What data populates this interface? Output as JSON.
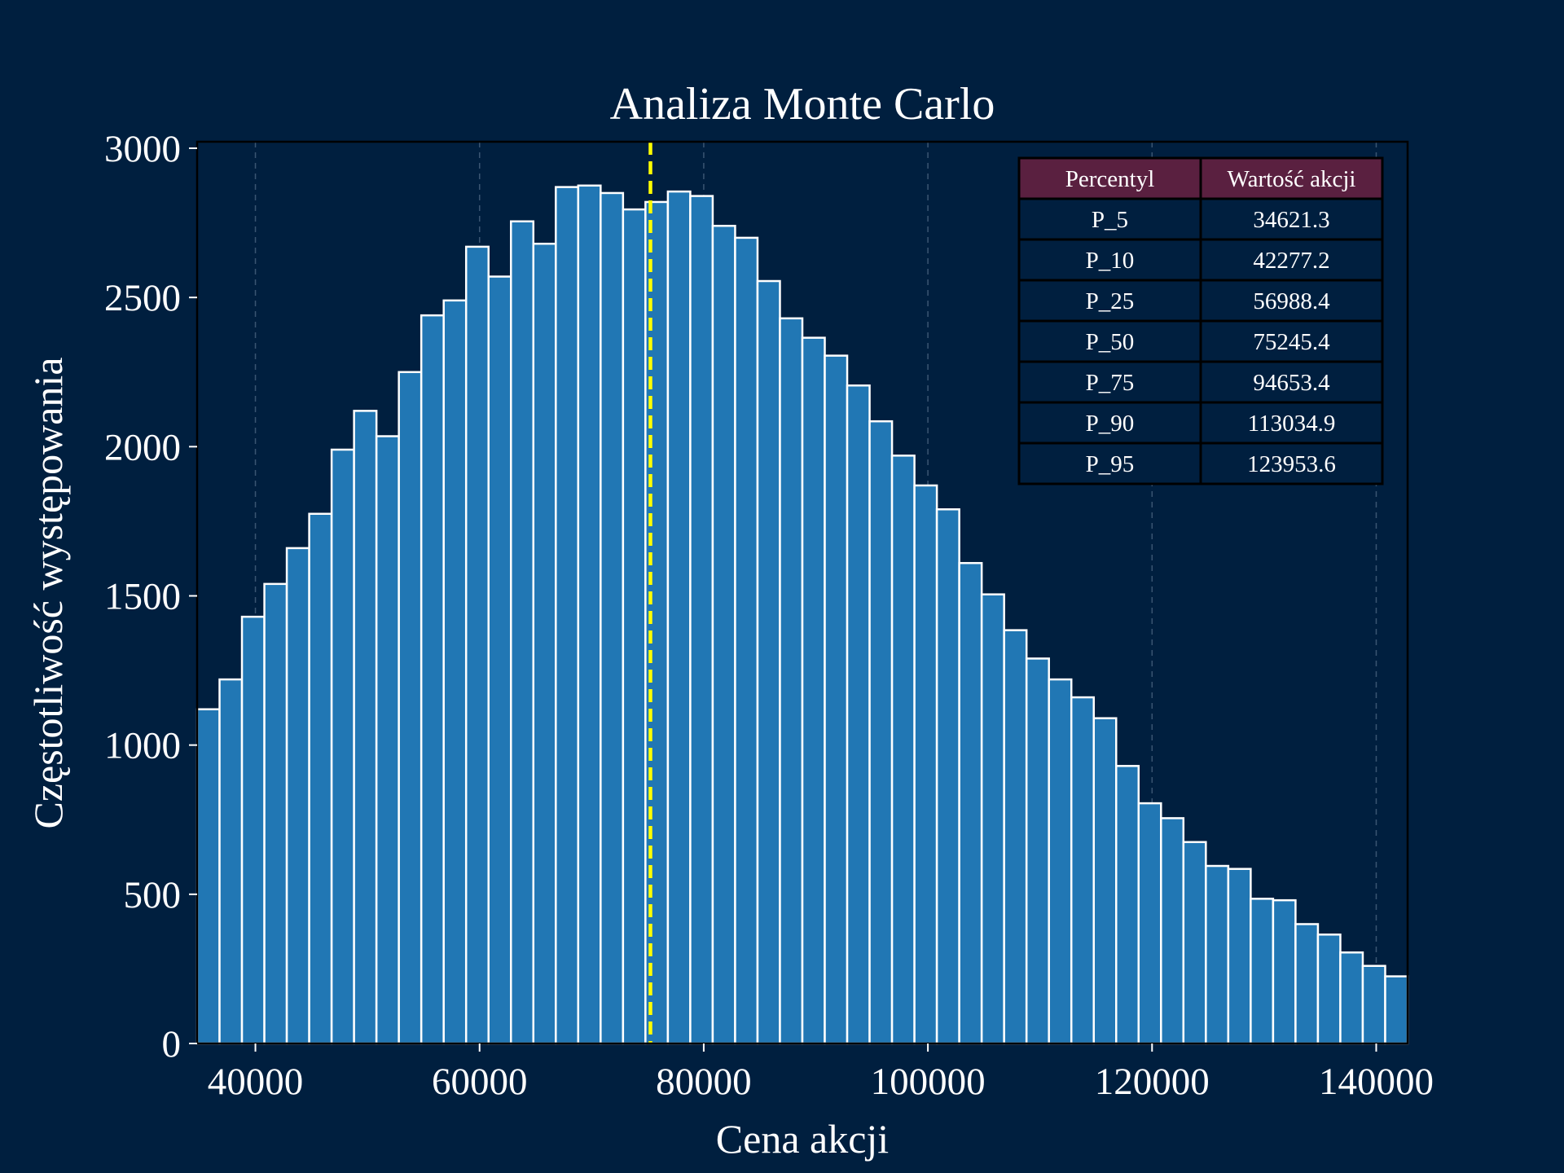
{
  "chart_data": {
    "type": "bar",
    "subtype": "histogram",
    "title": "Analiza Monte Carlo",
    "xlabel": "Cena akcji",
    "ylabel": "Częstotliwość występowania",
    "xlim": [
      34800,
      142800
    ],
    "ylim": [
      0,
      3000
    ],
    "x_ticks": [
      40000,
      60000,
      80000,
      100000,
      120000,
      140000
    ],
    "y_ticks": [
      0,
      500,
      1000,
      1500,
      2000,
      2500,
      3000
    ],
    "bin_start": 34800,
    "bin_width": 2000,
    "counts": [
      1120,
      1220,
      1430,
      1540,
      1660,
      1775,
      1990,
      2120,
      2035,
      2250,
      2440,
      2490,
      2670,
      2570,
      2755,
      2680,
      2870,
      2875,
      2850,
      2795,
      2820,
      2855,
      2840,
      2740,
      2700,
      2555,
      2430,
      2365,
      2305,
      2205,
      2085,
      1970,
      1870,
      1790,
      1610,
      1505,
      1385,
      1290,
      1220,
      1160,
      1090,
      930,
      805,
      755,
      675,
      595,
      585,
      485,
      480,
      400,
      365,
      305,
      260,
      225
    ],
    "median_line": 75245.4,
    "grid": "vertical dashed",
    "colors": {
      "background": "#001f3f",
      "bar_fill": "#2177b4",
      "bar_edge": "#ffffff",
      "median_line": "#ffff00",
      "table_header": "#5a2040",
      "table_cell": "#001f3f"
    },
    "table": {
      "position": "top-right",
      "headers": [
        "Percentyl",
        "Wartość akcji"
      ],
      "rows": [
        [
          "P_5",
          "34621.3"
        ],
        [
          "P_10",
          "42277.2"
        ],
        [
          "P_25",
          "56988.4"
        ],
        [
          "P_50",
          "75245.4"
        ],
        [
          "P_75",
          "94653.4"
        ],
        [
          "P_90",
          "113034.9"
        ],
        [
          "P_95",
          "123953.6"
        ]
      ]
    }
  }
}
